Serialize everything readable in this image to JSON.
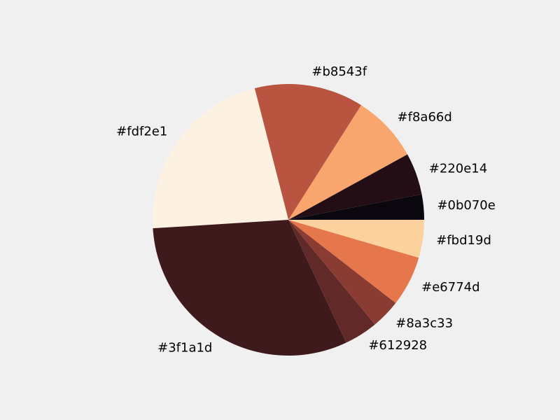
{
  "chart_data": {
    "type": "pie",
    "title": "",
    "start_angle_deg": 0,
    "direction": "counterclockwise",
    "slices": [
      {
        "label": "#0b070e",
        "value": 3.0,
        "color": "#0b070e"
      },
      {
        "label": "#220e14",
        "value": 5.0,
        "color": "#220e14"
      },
      {
        "label": "#f8a66d",
        "value": 8.0,
        "color": "#f8a66d"
      },
      {
        "label": "#b8543f",
        "value": 13.0,
        "color": "#b8543f"
      },
      {
        "label": "#fdf2e1",
        "value": 22.0,
        "color": "#fdf2e1"
      },
      {
        "label": "#3f1a1d",
        "value": 31.0,
        "color": "#3f1a1d"
      },
      {
        "label": "#612928",
        "value": 4.0,
        "color": "#612928"
      },
      {
        "label": "#8a3c33",
        "value": 3.5,
        "color": "#8a3c33"
      },
      {
        "label": "#e6774d",
        "value": 6.0,
        "color": "#e6774d"
      },
      {
        "label": "#fbd19d",
        "value": 4.5,
        "color": "#fbd19d"
      }
    ]
  }
}
